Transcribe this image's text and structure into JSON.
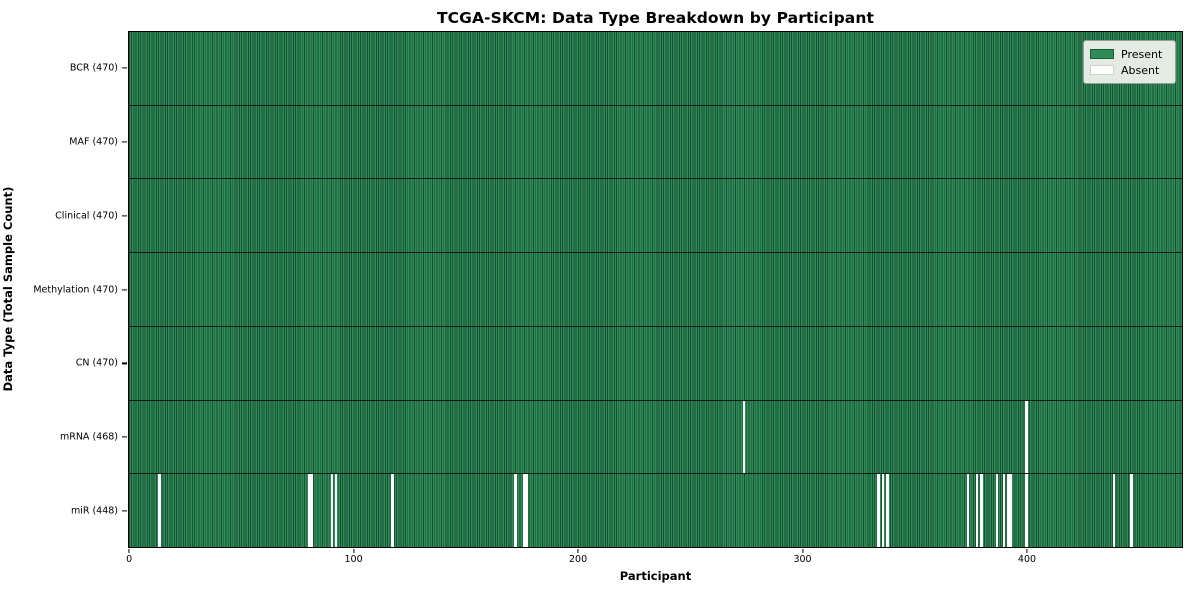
{
  "figure": {
    "title": "TCGA-SKCM: Data Type Breakdown by Participant",
    "xlabel": "Participant",
    "ylabel": "Data Type (Total Sample Count)"
  },
  "legend": {
    "entries": [
      {
        "name": "present",
        "label": "Present",
        "color": "#2e8b57"
      },
      {
        "name": "absent",
        "label": "Absent",
        "color": "#ffffff"
      }
    ]
  },
  "colors": {
    "present_fill": "#2f8c58",
    "present_edge": "#17512f",
    "absent_fill": "#ffffff",
    "row_divider": "rgba(0,0,0,0.78)",
    "legend_bg": "#ebefe9"
  },
  "chart_data": {
    "type": "heatmap",
    "title": "TCGA-SKCM: Data Type Breakdown by Participant",
    "xlabel": "Participant",
    "ylabel": "Data Type (Total Sample Count)",
    "legend_labels": [
      "Present",
      "Absent"
    ],
    "n_participants": 470,
    "x_ticks": [
      0,
      100,
      200,
      300,
      400
    ],
    "x_range": [
      0,
      470
    ],
    "rows": [
      {
        "data_type": "BCR",
        "label": "BCR (470)",
        "sample_count": 470,
        "absent_participants": []
      },
      {
        "data_type": "MAF",
        "label": "MAF (470)",
        "sample_count": 470,
        "absent_participants": []
      },
      {
        "data_type": "Clinical",
        "label": "Clinical (470)",
        "sample_count": 470,
        "absent_participants": []
      },
      {
        "data_type": "Methylation",
        "label": "Methylation (470)",
        "sample_count": 470,
        "absent_participants": []
      },
      {
        "data_type": "CN",
        "label": "CN (470)",
        "sample_count": 470,
        "absent_participants": []
      },
      {
        "data_type": "mRNA",
        "label": "mRNA (468)",
        "sample_count": 468,
        "absent_participants": [
          274,
          400
        ]
      },
      {
        "data_type": "miR",
        "label": "miR (448)",
        "sample_count": 448,
        "absent_participants": [
          13,
          80,
          81,
          90,
          92,
          117,
          172,
          176,
          177,
          334,
          336,
          338,
          374,
          378,
          380,
          387,
          390,
          392,
          393,
          400,
          439,
          447
        ]
      }
    ]
  }
}
